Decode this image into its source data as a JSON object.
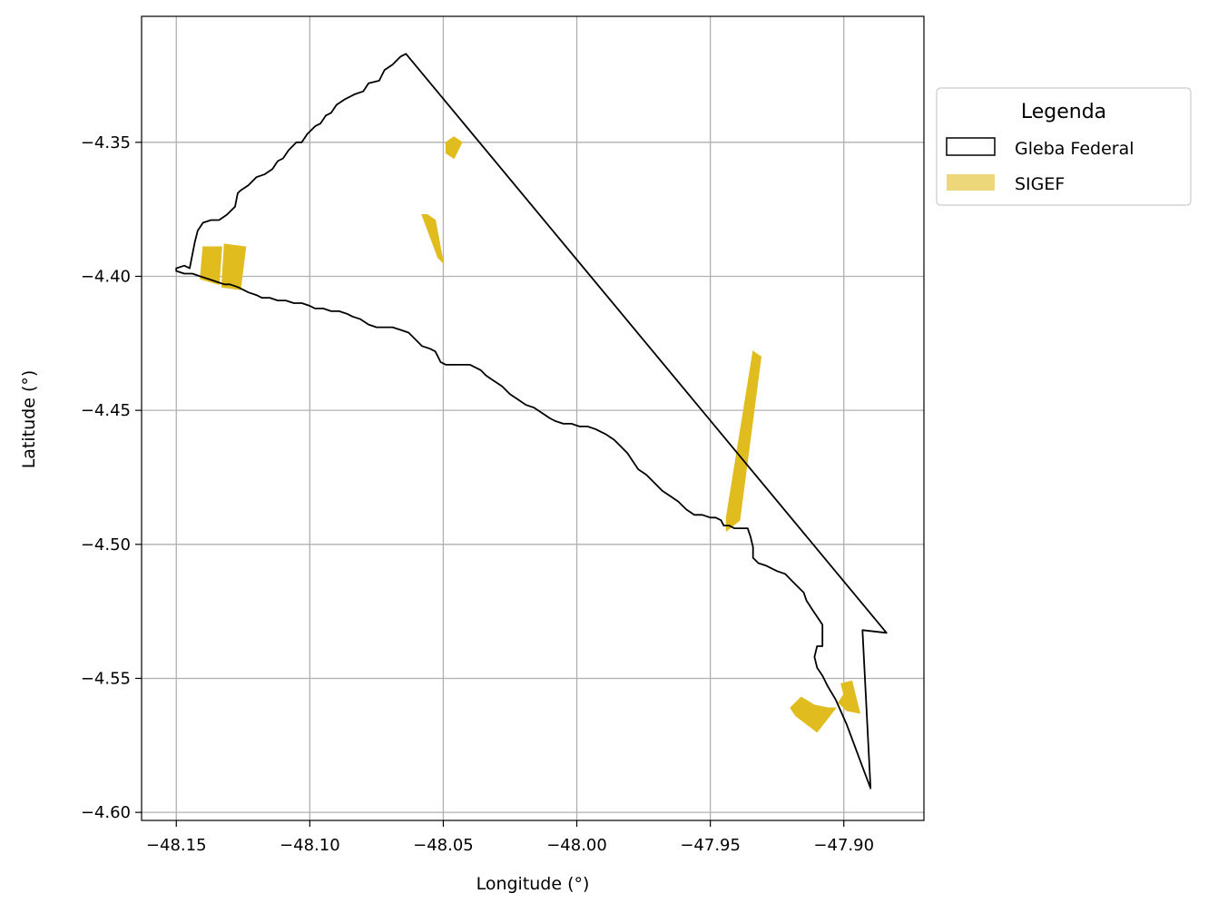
{
  "chart_data": {
    "type": "map",
    "xlabel": "Longitude (°)",
    "ylabel": "Latitude (°)",
    "xlim": [
      -48.163,
      -47.87
    ],
    "ylim": [
      -4.603,
      -4.303
    ],
    "grid": true,
    "xticks": [
      -48.15,
      -48.1,
      -48.05,
      -48.0,
      -47.95,
      -47.9
    ],
    "xtick_labels": [
      "−48.15",
      "−48.10",
      "−48.05",
      "−48.00",
      "−47.95",
      "−47.90"
    ],
    "yticks": [
      -4.35,
      -4.4,
      -4.45,
      -4.5,
      -4.55,
      -4.6
    ],
    "ytick_labels": [
      "−4.35",
      "−4.40",
      "−4.45",
      "−4.50",
      "−4.55",
      "−4.60"
    ],
    "legend": {
      "title": "Legenda",
      "placement": "upper-right-outside",
      "entries": [
        "Gleba Federal",
        "SIGEF"
      ]
    },
    "colors": {
      "gleba_edge": "#000000",
      "sigef_fill": "#e0bc1f",
      "sigef_legend": "#ecd77a",
      "grid": "#b0b0b0"
    },
    "gleba_federal": [
      [
        -48.15,
        -4.397
      ],
      [
        -48.147,
        -4.396
      ],
      [
        -48.145,
        -4.397
      ],
      [
        -48.144,
        -4.392
      ],
      [
        -48.143,
        -4.387
      ],
      [
        -48.142,
        -4.383
      ],
      [
        -48.14,
        -4.38
      ],
      [
        -48.137,
        -4.379
      ],
      [
        -48.134,
        -4.379
      ],
      [
        -48.131,
        -4.377
      ],
      [
        -48.128,
        -4.374
      ],
      [
        -48.127,
        -4.369
      ],
      [
        -48.126,
        -4.368
      ],
      [
        -48.123,
        -4.366
      ],
      [
        -48.12,
        -4.363
      ],
      [
        -48.117,
        -4.362
      ],
      [
        -48.114,
        -4.36
      ],
      [
        -48.112,
        -4.357
      ],
      [
        -48.11,
        -4.356
      ],
      [
        -48.108,
        -4.353
      ],
      [
        -48.105,
        -4.35
      ],
      [
        -48.103,
        -4.35
      ],
      [
        -48.101,
        -4.347
      ],
      [
        -48.098,
        -4.344
      ],
      [
        -48.096,
        -4.343
      ],
      [
        -48.094,
        -4.34
      ],
      [
        -48.092,
        -4.339
      ],
      [
        -48.09,
        -4.336
      ],
      [
        -48.087,
        -4.334
      ],
      [
        -48.083,
        -4.332
      ],
      [
        -48.08,
        -4.331
      ],
      [
        -48.078,
        -4.328
      ],
      [
        -48.074,
        -4.327
      ],
      [
        -48.072,
        -4.323
      ],
      [
        -48.069,
        -4.321
      ],
      [
        -48.066,
        -4.318
      ],
      [
        -48.064,
        -4.317
      ],
      [
        -47.884,
        -4.533
      ],
      [
        -47.893,
        -4.532
      ],
      [
        -47.89,
        -4.591
      ],
      [
        -47.893,
        -4.583
      ],
      [
        -47.896,
        -4.575
      ],
      [
        -47.899,
        -4.567
      ],
      [
        -47.903,
        -4.558
      ],
      [
        -47.906,
        -4.553
      ],
      [
        -47.908,
        -4.549
      ],
      [
        -47.91,
        -4.546
      ],
      [
        -47.911,
        -4.542
      ],
      [
        -47.91,
        -4.538
      ],
      [
        -47.908,
        -4.538
      ],
      [
        -47.908,
        -4.534
      ],
      [
        -47.908,
        -4.53
      ],
      [
        -47.91,
        -4.527
      ],
      [
        -47.912,
        -4.524
      ],
      [
        -47.914,
        -4.521
      ],
      [
        -47.915,
        -4.518
      ],
      [
        -47.917,
        -4.516
      ],
      [
        -47.919,
        -4.514
      ],
      [
        -47.922,
        -4.511
      ],
      [
        -47.925,
        -4.51
      ],
      [
        -47.929,
        -4.508
      ],
      [
        -47.932,
        -4.507
      ],
      [
        -47.934,
        -4.505
      ],
      [
        -47.934,
        -4.501
      ],
      [
        -47.935,
        -4.497
      ],
      [
        -47.936,
        -4.494
      ],
      [
        -47.939,
        -4.494
      ],
      [
        -47.941,
        -4.494
      ],
      [
        -47.943,
        -4.493
      ],
      [
        -47.945,
        -4.493
      ],
      [
        -47.946,
        -4.491
      ],
      [
        -47.948,
        -4.49
      ],
      [
        -47.95,
        -4.49
      ],
      [
        -47.953,
        -4.489
      ],
      [
        -47.956,
        -4.489
      ],
      [
        -47.959,
        -4.487
      ],
      [
        -47.962,
        -4.484
      ],
      [
        -47.965,
        -4.482
      ],
      [
        -47.968,
        -4.48
      ],
      [
        -47.971,
        -4.477
      ],
      [
        -47.974,
        -4.474
      ],
      [
        -47.977,
        -4.472
      ],
      [
        -47.979,
        -4.469
      ],
      [
        -47.981,
        -4.466
      ],
      [
        -47.984,
        -4.463
      ],
      [
        -47.986,
        -4.461
      ],
      [
        -47.989,
        -4.459
      ],
      [
        -47.993,
        -4.457
      ],
      [
        -47.996,
        -4.456
      ],
      [
        -47.999,
        -4.456
      ],
      [
        -48.002,
        -4.455
      ],
      [
        -48.005,
        -4.455
      ],
      [
        -48.008,
        -4.454
      ],
      [
        -48.01,
        -4.453
      ],
      [
        -48.013,
        -4.451
      ],
      [
        -48.016,
        -4.449
      ],
      [
        -48.019,
        -4.448
      ],
      [
        -48.022,
        -4.446
      ],
      [
        -48.025,
        -4.444
      ],
      [
        -48.028,
        -4.441
      ],
      [
        -48.031,
        -4.439
      ],
      [
        -48.034,
        -4.437
      ],
      [
        -48.036,
        -4.435
      ],
      [
        -48.04,
        -4.433
      ],
      [
        -48.043,
        -4.433
      ],
      [
        -48.046,
        -4.433
      ],
      [
        -48.049,
        -4.433
      ],
      [
        -48.051,
        -4.432
      ],
      [
        -48.052,
        -4.43
      ],
      [
        -48.053,
        -4.428
      ],
      [
        -48.055,
        -4.427
      ],
      [
        -48.058,
        -4.426
      ],
      [
        -48.061,
        -4.423
      ],
      [
        -48.063,
        -4.421
      ],
      [
        -48.066,
        -4.42
      ],
      [
        -48.069,
        -4.419
      ],
      [
        -48.072,
        -4.419
      ],
      [
        -48.075,
        -4.419
      ],
      [
        -48.078,
        -4.418
      ],
      [
        -48.081,
        -4.416
      ],
      [
        -48.084,
        -4.415
      ],
      [
        -48.086,
        -4.414
      ],
      [
        -48.089,
        -4.413
      ],
      [
        -48.092,
        -4.413
      ],
      [
        -48.095,
        -4.412
      ],
      [
        -48.098,
        -4.412
      ],
      [
        -48.1,
        -4.411
      ],
      [
        -48.103,
        -4.41
      ],
      [
        -48.106,
        -4.41
      ],
      [
        -48.109,
        -4.409
      ],
      [
        -48.112,
        -4.409
      ],
      [
        -48.115,
        -4.408
      ],
      [
        -48.118,
        -4.408
      ],
      [
        -48.12,
        -4.407
      ],
      [
        -48.123,
        -4.406
      ],
      [
        -48.125,
        -4.405
      ],
      [
        -48.127,
        -4.404
      ],
      [
        -48.13,
        -4.403
      ],
      [
        -48.132,
        -4.403
      ],
      [
        -48.135,
        -4.402
      ],
      [
        -48.138,
        -4.401
      ],
      [
        -48.141,
        -4.4
      ],
      [
        -48.144,
        -4.399
      ],
      [
        -48.147,
        -4.399
      ],
      [
        -48.15,
        -4.398
      ]
    ],
    "sigef": [
      [
        [
          -48.14,
          -4.389
        ],
        [
          -48.133,
          -4.389
        ],
        [
          -48.134,
          -4.403
        ],
        [
          -48.141,
          -4.401
        ]
      ],
      [
        [
          -48.132,
          -4.388
        ],
        [
          -48.124,
          -4.389
        ],
        [
          -48.126,
          -4.405
        ],
        [
          -48.133,
          -4.404
        ]
      ],
      [
        [
          -48.049,
          -4.35
        ],
        [
          -48.046,
          -4.348
        ],
        [
          -48.043,
          -4.35
        ],
        [
          -48.046,
          -4.356
        ],
        [
          -48.049,
          -4.354
        ]
      ],
      [
        [
          -48.058,
          -4.377
        ],
        [
          -48.056,
          -4.377
        ],
        [
          -48.053,
          -4.379
        ],
        [
          -48.05,
          -4.395
        ],
        [
          -48.052,
          -4.393
        ]
      ],
      [
        [
          -47.934,
          -4.428
        ],
        [
          -47.931,
          -4.43
        ],
        [
          -47.939,
          -4.491
        ],
        [
          -47.944,
          -4.495
        ],
        [
          -47.944,
          -4.49
        ]
      ],
      [
        [
          -47.92,
          -4.561
        ],
        [
          -47.916,
          -4.557
        ],
        [
          -47.911,
          -4.56
        ],
        [
          -47.906,
          -4.561
        ],
        [
          -47.903,
          -4.561
        ],
        [
          -47.91,
          -4.57
        ],
        [
          -47.918,
          -4.564
        ]
      ],
      [
        [
          -47.901,
          -4.552
        ],
        [
          -47.897,
          -4.551
        ],
        [
          -47.894,
          -4.563
        ],
        [
          -47.899,
          -4.562
        ],
        [
          -47.902,
          -4.559
        ],
        [
          -47.9,
          -4.556
        ]
      ]
    ]
  }
}
